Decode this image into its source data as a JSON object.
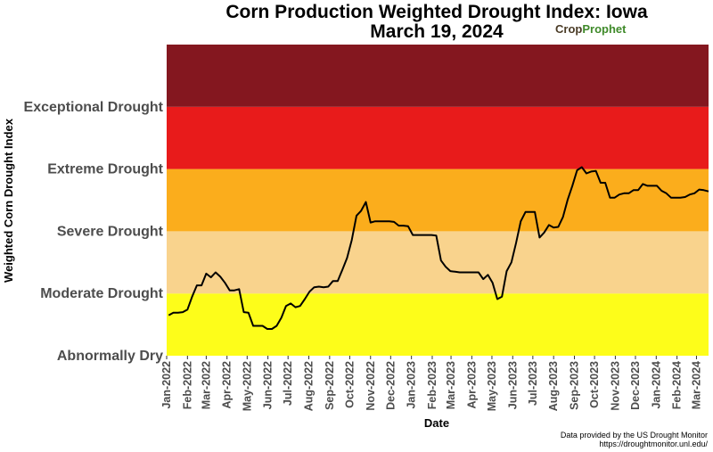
{
  "chart_data": {
    "type": "line",
    "title": "Corn Production Weighted Drought Index: Iowa",
    "subtitle": "March 19, 2024",
    "xlabel": "Date",
    "ylabel": "Weighted Corn Drought Index",
    "ylim": [
      0,
      5
    ],
    "bands": [
      {
        "label": "Abnormally Dry",
        "from": 0,
        "to": 1,
        "color": "#fdfd1a"
      },
      {
        "label": "Moderate Drought",
        "from": 1,
        "to": 2,
        "color": "#f9d38d"
      },
      {
        "label": "Severe Drought",
        "from": 2,
        "to": 3,
        "color": "#fbad1c"
      },
      {
        "label": "Extreme Drought",
        "from": 3,
        "to": 4,
        "color": "#e81b1b"
      },
      {
        "label": "Exceptional Drought",
        "from": 4,
        "to": 5,
        "color": "#84171f"
      }
    ],
    "x_ticks": [
      "Jan-2022",
      "Feb-2022",
      "Mar-2022",
      "Apr-2022",
      "May-2022",
      "Jun-2022",
      "Jul-2022",
      "Aug-2022",
      "Sep-2022",
      "Oct-2022",
      "Nov-2022",
      "Dec-2022",
      "Jan-2023",
      "Feb-2023",
      "Mar-2023",
      "Apr-2023",
      "May-2023",
      "Jun-2023",
      "Jul-2023",
      "Aug-2023",
      "Sep-2023",
      "Oct-2023",
      "Nov-2023",
      "Dec-2023",
      "Jan-2024",
      "Feb-2024",
      "Mar-2024"
    ],
    "line_color": "#000000",
    "series": [
      {
        "x": [
          "2022-01-04",
          "2022-01-11",
          "2022-01-18",
          "2022-01-25",
          "2022-02-01",
          "2022-02-08",
          "2022-02-15",
          "2022-02-22",
          "2022-03-01",
          "2022-03-08",
          "2022-03-15",
          "2022-03-22",
          "2022-03-29",
          "2022-04-05",
          "2022-04-12",
          "2022-04-19",
          "2022-04-26",
          "2022-05-03",
          "2022-05-10",
          "2022-05-17",
          "2022-05-24",
          "2022-05-31",
          "2022-06-07",
          "2022-06-14",
          "2022-06-21",
          "2022-06-28",
          "2022-07-05",
          "2022-07-12",
          "2022-07-19",
          "2022-07-26",
          "2022-08-02",
          "2022-08-09",
          "2022-08-16",
          "2022-08-23",
          "2022-08-30",
          "2022-09-06",
          "2022-09-13",
          "2022-09-20",
          "2022-09-27",
          "2022-10-04",
          "2022-10-11",
          "2022-10-18",
          "2022-10-25",
          "2022-11-01",
          "2022-11-08",
          "2022-11-15",
          "2022-11-22",
          "2022-11-29",
          "2022-12-06",
          "2022-12-13",
          "2022-12-20",
          "2022-12-27",
          "2023-01-03",
          "2023-01-10",
          "2023-01-17",
          "2023-01-24",
          "2023-01-31",
          "2023-02-07",
          "2023-02-14",
          "2023-02-21",
          "2023-02-28",
          "2023-03-07",
          "2023-03-14",
          "2023-03-21",
          "2023-03-28",
          "2023-04-04",
          "2023-04-11",
          "2023-04-18",
          "2023-04-25",
          "2023-05-02",
          "2023-05-09",
          "2023-05-16",
          "2023-05-23",
          "2023-05-30",
          "2023-06-06",
          "2023-06-13",
          "2023-06-20",
          "2023-06-27",
          "2023-07-04",
          "2023-07-11",
          "2023-07-18",
          "2023-07-25",
          "2023-08-01",
          "2023-08-08",
          "2023-08-15",
          "2023-08-22",
          "2023-08-29",
          "2023-09-05",
          "2023-09-12",
          "2023-09-19",
          "2023-09-26",
          "2023-10-03",
          "2023-10-10",
          "2023-10-17",
          "2023-10-24",
          "2023-10-31",
          "2023-11-07",
          "2023-11-14",
          "2023-11-21",
          "2023-11-28",
          "2023-12-05",
          "2023-12-12",
          "2023-12-19",
          "2023-12-26",
          "2024-01-02",
          "2024-01-09",
          "2024-01-16",
          "2024-01-23",
          "2024-01-30",
          "2024-02-06",
          "2024-02-13",
          "2024-02-20",
          "2024-02-27",
          "2024-03-05",
          "2024-03-12",
          "2024-03-19"
        ],
        "values": [
          0.65,
          0.69,
          0.69,
          0.7,
          0.74,
          0.95,
          1.13,
          1.13,
          1.32,
          1.26,
          1.34,
          1.27,
          1.17,
          1.05,
          1.05,
          1.07,
          0.7,
          0.69,
          0.48,
          0.48,
          0.48,
          0.43,
          0.43,
          0.48,
          0.61,
          0.8,
          0.84,
          0.78,
          0.8,
          0.91,
          1.03,
          1.1,
          1.11,
          1.1,
          1.11,
          1.2,
          1.2,
          1.38,
          1.57,
          1.86,
          2.25,
          2.33,
          2.47,
          2.14,
          2.16,
          2.16,
          2.16,
          2.16,
          2.15,
          2.09,
          2.09,
          2.08,
          1.94,
          1.94,
          1.94,
          1.94,
          1.94,
          1.93,
          1.53,
          1.43,
          1.36,
          1.35,
          1.34,
          1.34,
          1.34,
          1.34,
          1.34,
          1.23,
          1.3,
          1.17,
          0.91,
          0.95,
          1.36,
          1.5,
          1.81,
          2.16,
          2.31,
          2.31,
          2.31,
          1.9,
          1.98,
          2.1,
          2.06,
          2.07,
          2.23,
          2.51,
          2.73,
          2.98,
          3.03,
          2.93,
          2.96,
          2.97,
          2.78,
          2.78,
          2.54,
          2.54,
          2.59,
          2.61,
          2.61,
          2.66,
          2.66,
          2.76,
          2.73,
          2.73,
          2.73,
          2.65,
          2.61,
          2.54,
          2.54,
          2.54,
          2.55,
          2.59,
          2.61,
          2.67,
          2.66,
          2.64
        ]
      }
    ]
  },
  "logo": {
    "part1": "Crop",
    "part2": "Prophet"
  },
  "source": {
    "line1": "Data provided by the US Drought Monitor",
    "line2": "https://droughtmonitor.unl.edu/"
  }
}
